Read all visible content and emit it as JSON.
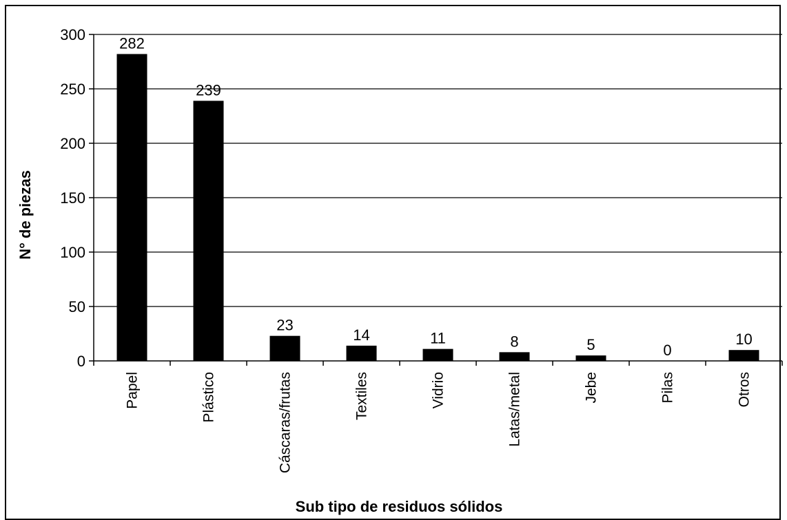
{
  "chart_data": {
    "type": "bar",
    "title": "",
    "xlabel": "Sub tipo de residuos sólidos",
    "ylabel": "N° de piezas",
    "categories": [
      "Papel",
      "Plástico",
      "Cáscaras/frutas",
      "Textiles",
      "Vidrio",
      "Latas/metal",
      "Jebe",
      "Pilas",
      "Otros"
    ],
    "values": [
      282,
      239,
      23,
      14,
      11,
      8,
      5,
      0,
      10
    ],
    "ylim": [
      0,
      300
    ],
    "yticks": [
      0,
      50,
      100,
      150,
      200,
      250,
      300
    ],
    "grid": true,
    "legend": "none",
    "bar_color": "#000000"
  }
}
